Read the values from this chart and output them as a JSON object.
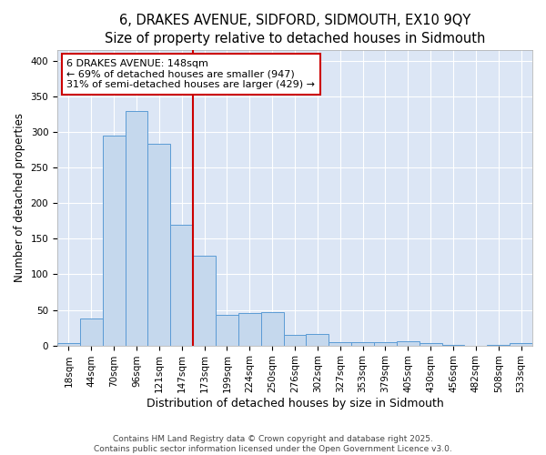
{
  "title": "6, DRAKES AVENUE, SIDFORD, SIDMOUTH, EX10 9QY",
  "subtitle": "Size of property relative to detached houses in Sidmouth",
  "xlabel": "Distribution of detached houses by size in Sidmouth",
  "ylabel": "Number of detached properties",
  "bar_color": "#c5d8ed",
  "bar_edge_color": "#5b9bd5",
  "plot_bg_color": "#dce6f5",
  "figure_bg_color": "#ffffff",
  "grid_color": "#ffffff",
  "annotation_box_edge_color": "#cc0000",
  "vline_color": "#cc0000",
  "categories": [
    "18sqm",
    "44sqm",
    "70sqm",
    "96sqm",
    "121sqm",
    "147sqm",
    "173sqm",
    "199sqm",
    "224sqm",
    "250sqm",
    "276sqm",
    "302sqm",
    "327sqm",
    "353sqm",
    "379sqm",
    "405sqm",
    "430sqm",
    "456sqm",
    "482sqm",
    "508sqm",
    "533sqm"
  ],
  "values": [
    3,
    38,
    295,
    330,
    283,
    170,
    126,
    43,
    46,
    47,
    15,
    16,
    4,
    5,
    5,
    6,
    3,
    1,
    0,
    1,
    3
  ],
  "vline_position": 5.5,
  "annotation_line1": "6 DRAKES AVENUE: 148sqm",
  "annotation_line2": "← 69% of detached houses are smaller (947)",
  "annotation_line3": "31% of semi-detached houses are larger (429) →",
  "ylim": [
    0,
    415
  ],
  "yticks": [
    0,
    50,
    100,
    150,
    200,
    250,
    300,
    350,
    400
  ],
  "footer_line1": "Contains HM Land Registry data © Crown copyright and database right 2025.",
  "footer_line2": "Contains public sector information licensed under the Open Government Licence v3.0.",
  "title_fontsize": 10.5,
  "subtitle_fontsize": 9.5,
  "tick_fontsize": 7.5,
  "ylabel_fontsize": 8.5,
  "xlabel_fontsize": 9,
  "annotation_fontsize": 8,
  "footer_fontsize": 6.5
}
